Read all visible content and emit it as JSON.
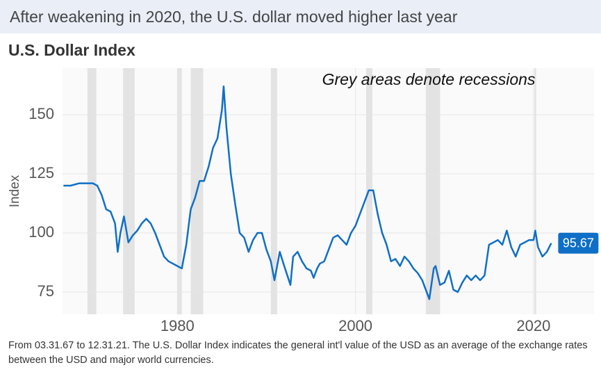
{
  "header": "After weakening in 2020, the U.S. dollar moved higher last year",
  "chart_data": {
    "type": "line",
    "title": "U.S. Dollar Index",
    "annotation": "Grey areas denote recessions",
    "y_label": "Index",
    "x": [
      1967.2,
      1968,
      1969,
      1970,
      1970.5,
      1971,
      1971.5,
      1972,
      1972.5,
      1973,
      1973.3,
      1973.6,
      1974,
      1974.5,
      1975,
      1975.5,
      1976,
      1976.5,
      1977,
      1977.5,
      1978,
      1978.5,
      1979,
      1979.5,
      1980,
      1980.5,
      1981,
      1981.5,
      1982,
      1982.5,
      1983,
      1983.5,
      1984,
      1984.5,
      1985,
      1985.2,
      1985.5,
      1986,
      1986.5,
      1987,
      1987.5,
      1988,
      1988.5,
      1989,
      1989.5,
      1990,
      1990.5,
      1990.9,
      1991.5,
      1992,
      1992.7,
      1993,
      1993.5,
      1994,
      1994.5,
      1995,
      1995.3,
      1995.7,
      1996,
      1996.5,
      1997,
      1997.5,
      1998,
      1998.5,
      1999,
      1999.5,
      2000,
      2000.5,
      2001,
      2001.5,
      2002,
      2002.5,
      2003,
      2003.5,
      2004,
      2004.5,
      2005,
      2005.5,
      2006,
      2006.5,
      2007,
      2007.5,
      2008,
      2008.3,
      2008.8,
      2009,
      2009.5,
      2010,
      2010.5,
      2011,
      2011.5,
      2012,
      2012.5,
      2013,
      2013.5,
      2014,
      2014.5,
      2015,
      2015.5,
      2016,
      2016.5,
      2017,
      2017.5,
      2018,
      2018.5,
      2019,
      2019.5,
      2020,
      2020.2,
      2020.5,
      2021,
      2021.5,
      2021.99
    ],
    "series": [
      {
        "color": "#0f6fc6",
        "values": [
          120,
          120,
          121,
          121,
          121,
          120,
          116,
          110,
          109,
          104,
          92,
          100,
          107,
          96,
          99,
          101,
          104,
          106,
          104,
          100,
          95,
          90,
          88,
          87,
          86,
          85,
          95,
          110,
          115,
          122,
          122,
          128,
          136,
          140,
          152,
          162,
          145,
          125,
          112,
          100,
          98,
          92,
          97,
          100,
          100,
          93,
          88,
          80,
          92,
          86,
          78,
          90,
          92,
          88,
          85,
          84,
          81,
          85,
          87,
          88,
          93,
          98,
          99,
          97,
          95,
          100,
          103,
          108,
          113,
          118,
          118,
          108,
          100,
          95,
          88,
          89,
          86,
          90,
          88,
          85,
          83,
          80,
          75,
          72,
          85,
          86,
          78,
          79,
          84,
          76,
          75,
          79,
          82,
          80,
          82,
          80,
          82,
          95,
          96,
          97,
          95,
          101,
          94,
          90,
          95,
          96,
          97,
          97,
          101,
          94,
          90,
          92,
          95.67
        ]
      }
    ],
    "recessions": [
      [
        1969.9,
        1970.9
      ],
      [
        1973.9,
        1975.2
      ],
      [
        1980.0,
        1980.5
      ],
      [
        1981.5,
        1982.9
      ],
      [
        1990.5,
        1991.2
      ],
      [
        2001.2,
        2001.9
      ],
      [
        2007.9,
        2009.5
      ],
      [
        2020.1,
        2020.3
      ]
    ],
    "xlim": [
      1967.1,
      2026.8
    ],
    "ylim": [
      65.6,
      169.7
    ],
    "xticks": [
      1980,
      2000,
      2020
    ],
    "yticks": [
      75,
      100,
      125,
      150
    ],
    "grid": true,
    "footnote": "From 03.31.67 to 12.31.21. The U.S. Dollar Index indicates the general int'l value of the USD as an average of the exchange rates between the USD and major world currencies."
  }
}
